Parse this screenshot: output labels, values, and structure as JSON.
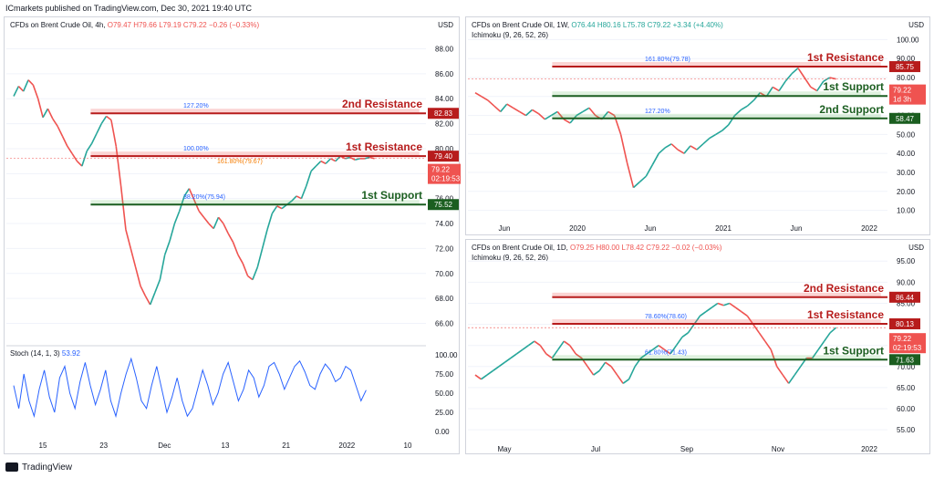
{
  "header": "ICmarkets published on TradingView.com, Dec 30, 2021 19:40 UTC",
  "footer": "TradingView",
  "chart_data": [
    {
      "type": "line",
      "id": "p1",
      "title": "CFDs on Brent Crude Oil, 4h,",
      "ohlc": {
        "o": "O79.47",
        "h": "H79.66",
        "l": "L79.19",
        "c": "C79.22",
        "chg": "−0.26 (−0.33%)"
      },
      "currency": "USD",
      "ylim": [
        64.5,
        89.5
      ],
      "yticks": [
        "88.00",
        "86.00",
        "84.00",
        "82.00",
        "80.00",
        "78.00",
        "76.00",
        "74.00",
        "72.00",
        "70.00",
        "68.00",
        "66.00"
      ],
      "xticks": [
        "15",
        "23",
        "Dec",
        "13",
        "21",
        "2022",
        "10"
      ],
      "x": [
        0,
        4,
        8,
        12,
        16,
        20,
        24,
        28,
        32,
        36,
        40,
        44,
        48,
        52,
        56,
        60,
        64,
        68,
        72,
        76,
        80,
        84,
        88,
        92,
        96,
        100,
        104,
        108,
        112,
        116,
        120,
        124,
        128,
        132,
        136,
        140,
        144,
        148,
        152,
        156,
        160,
        164,
        168,
        172,
        176,
        180,
        184,
        188,
        192,
        196,
        200,
        204,
        208,
        212,
        216,
        220,
        224,
        228,
        232,
        236,
        240,
        244,
        248,
        252,
        256,
        260,
        264,
        268,
        272,
        276,
        280,
        284,
        288,
        292,
        296,
        300,
        304,
        308,
        312,
        316,
        320,
        324,
        328,
        332,
        336,
        340,
        344,
        348,
        352,
        356,
        360,
        364,
        368,
        372,
        376,
        380
      ],
      "y": [
        84.2,
        85.0,
        84.6,
        85.5,
        85.1,
        84.0,
        82.5,
        83.2,
        82.4,
        81.8,
        81.0,
        80.2,
        79.6,
        79.0,
        78.6,
        79.8,
        80.4,
        81.2,
        82.0,
        82.6,
        82.3,
        80.2,
        77.0,
        73.5,
        72.0,
        70.5,
        69.0,
        68.2,
        67.5,
        68.5,
        69.5,
        71.5,
        72.6,
        74.0,
        75.0,
        76.2,
        76.8,
        75.9,
        75.0,
        74.5,
        74.0,
        73.6,
        74.5,
        74.0,
        73.2,
        72.5,
        71.5,
        70.8,
        69.8,
        69.5,
        70.5,
        72.0,
        73.5,
        74.8,
        75.4,
        75.2,
        75.5,
        75.8,
        76.2,
        76.0,
        77.0,
        78.2,
        78.6,
        79.0,
        78.8,
        79.2,
        79.0,
        79.4,
        79.2,
        79.3,
        79.1,
        79.2,
        79.2,
        79.3,
        79.2,
        79.22,
        79.22,
        79.22,
        79.22,
        79.22,
        79.22,
        79.22,
        79.22,
        79.22,
        79.22,
        79.22,
        79.22,
        79.22,
        79.22,
        79.22,
        79.22,
        79.22,
        79.22,
        79.22,
        79.22,
        79.22
      ],
      "n_points": 75,
      "levels": [
        {
          "name": "2nd Resistance",
          "value": 82.83,
          "label": "82.83",
          "fib": "127.20%",
          "color": "#b71c1c"
        },
        {
          "name": "1st Resistance",
          "value": 79.4,
          "label": "79.40",
          "fib": "100.00%",
          "fib2": "161.80%(79.67)",
          "color": "#b71c1c"
        },
        {
          "name": "1st Support",
          "value": 75.52,
          "label": "75.52",
          "fib": "38.20%(75.94)",
          "color": "#1b5e20"
        }
      ],
      "last_price": {
        "value": "79.22",
        "countdown": "02:19:53"
      },
      "stoch": {
        "title": "Stoch (14, 1, 3)",
        "value": "53.92",
        "yticks": [
          "100.00",
          "75.00",
          "50.00",
          "25.00",
          "0.00"
        ],
        "y": [
          60,
          30,
          75,
          40,
          20,
          55,
          80,
          45,
          25,
          70,
          85,
          50,
          30,
          65,
          90,
          60,
          35,
          55,
          80,
          40,
          20,
          50,
          75,
          95,
          70,
          40,
          30,
          60,
          85,
          55,
          25,
          45,
          70,
          40,
          20,
          30,
          55,
          80,
          60,
          35,
          50,
          75,
          90,
          65,
          40,
          55,
          80,
          70,
          45,
          60,
          85,
          90,
          75,
          55,
          70,
          85,
          92,
          78,
          60,
          55,
          75,
          88,
          80,
          65,
          70,
          85,
          80,
          60,
          40,
          53.92
        ]
      }
    },
    {
      "type": "line",
      "id": "p2",
      "title": "CFDs on Brent Crude Oil, 1W,",
      "ohlc": {
        "o": "O76.44",
        "h": "H80.16",
        "l": "L75.78",
        "c": "C79.22",
        "chg": "+3.34 (+4.40%)"
      },
      "indicator": "Ichimoku (9, 26, 52, 26)",
      "currency": "USD",
      "ylim": [
        5,
        105
      ],
      "yticks": [
        "100.00",
        "90.00",
        "80.00",
        "70.00",
        "60.00",
        "50.00",
        "40.00",
        "30.00",
        "20.00",
        "10.00"
      ],
      "xticks": [
        "Jun",
        "2020",
        "Jun",
        "2021",
        "Jun",
        "2022"
      ],
      "y": [
        72,
        70,
        68,
        65,
        62,
        66,
        64,
        62,
        60,
        63,
        61,
        58,
        60,
        62,
        58,
        56,
        60,
        62,
        64,
        60,
        58,
        62,
        60,
        50,
        35,
        22,
        25,
        28,
        34,
        40,
        43,
        45,
        42,
        40,
        44,
        42,
        45,
        48,
        50,
        52,
        55,
        60,
        63,
        65,
        68,
        72,
        70,
        75,
        73,
        78,
        82,
        85,
        80,
        75,
        73,
        78,
        80,
        79.22
      ],
      "levels": [
        {
          "name": "1st Resistance",
          "value": 85.75,
          "label": "85.75",
          "fib": "161.80%(79.78)",
          "color": "#b71c1c"
        },
        {
          "name": "1st Support",
          "value": 70.27,
          "label": "70.27",
          "color": "#1b5e20"
        },
        {
          "name": "2nd Support",
          "value": 58.47,
          "label": "58.47",
          "fib": "127.20%",
          "color": "#1b5e20"
        }
      ],
      "last_price": {
        "value": "79.22",
        "countdown": "1d 3h"
      }
    },
    {
      "type": "line",
      "id": "p3",
      "title": "CFDs on Brent Crude Oil, 1D,",
      "ohlc": {
        "o": "O79.25",
        "h": "H80.00",
        "l": "L78.42",
        "c": "C79.22",
        "chg": "−0.02 (−0.03%)"
      },
      "indicator": "Ichimoku (9, 26, 52, 26)",
      "currency": "USD",
      "ylim": [
        52,
        97
      ],
      "yticks": [
        "95.00",
        "90.00",
        "85.00",
        "80.00",
        "75.00",
        "70.00",
        "65.00",
        "60.00",
        "55.00"
      ],
      "xticks": [
        "May",
        "Jul",
        "Sep",
        "Nov",
        "2022"
      ],
      "y": [
        68,
        67,
        68,
        69,
        70,
        71,
        72,
        73,
        74,
        75,
        76,
        75,
        73,
        72,
        74,
        76,
        75,
        73,
        72,
        70,
        68,
        69,
        71,
        70,
        68,
        66,
        67,
        70,
        72,
        73,
        74,
        75,
        74,
        73,
        75,
        77,
        78,
        80,
        82,
        83,
        84,
        85,
        84.5,
        85,
        84,
        83,
        82,
        80,
        78,
        76,
        74,
        70,
        68,
        66,
        68,
        70,
        72,
        72,
        74,
        76,
        78,
        79.22
      ],
      "levels": [
        {
          "name": "2nd Resistance",
          "value": 86.44,
          "label": "86.44",
          "color": "#b71c1c"
        },
        {
          "name": "1st Resistance",
          "value": 80.13,
          "label": "80.13",
          "fib": "78.60%(78.60)",
          "color": "#b71c1c"
        },
        {
          "name": "1st Support",
          "value": 71.63,
          "label": "71.63",
          "fib": "61.80%(71.43)",
          "color": "#1b5e20"
        }
      ],
      "last_price": {
        "value": "79.22",
        "countdown": "02:19:53"
      }
    }
  ]
}
